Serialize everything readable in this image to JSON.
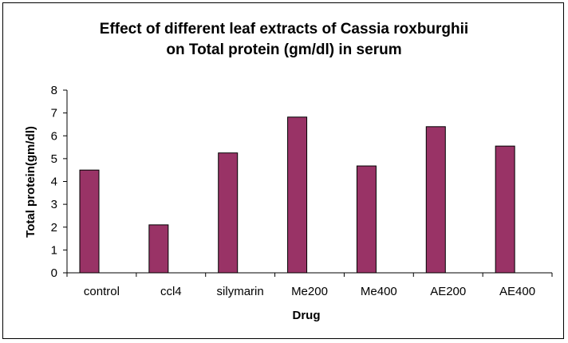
{
  "chart_data": {
    "type": "bar",
    "title_line1": "Effect of different leaf extracts of Cassia roxburghii",
    "title_line2": "on Total protein (gm/dl) in serum",
    "xlabel": "Drug",
    "ylabel": "Total protein(gm/dl)",
    "ylim": [
      0,
      8
    ],
    "yticks": [
      "0",
      "1",
      "2",
      "3",
      "4",
      "5",
      "6",
      "7",
      "8"
    ],
    "categories": [
      "control",
      "ccl4",
      "silymarin",
      "Me200",
      "Me400",
      "AE200",
      "AE400"
    ],
    "values": [
      4.5,
      2.1,
      5.25,
      6.82,
      4.68,
      6.4,
      5.55
    ],
    "bar_color": "#993366",
    "grid": false,
    "legend": "none"
  }
}
